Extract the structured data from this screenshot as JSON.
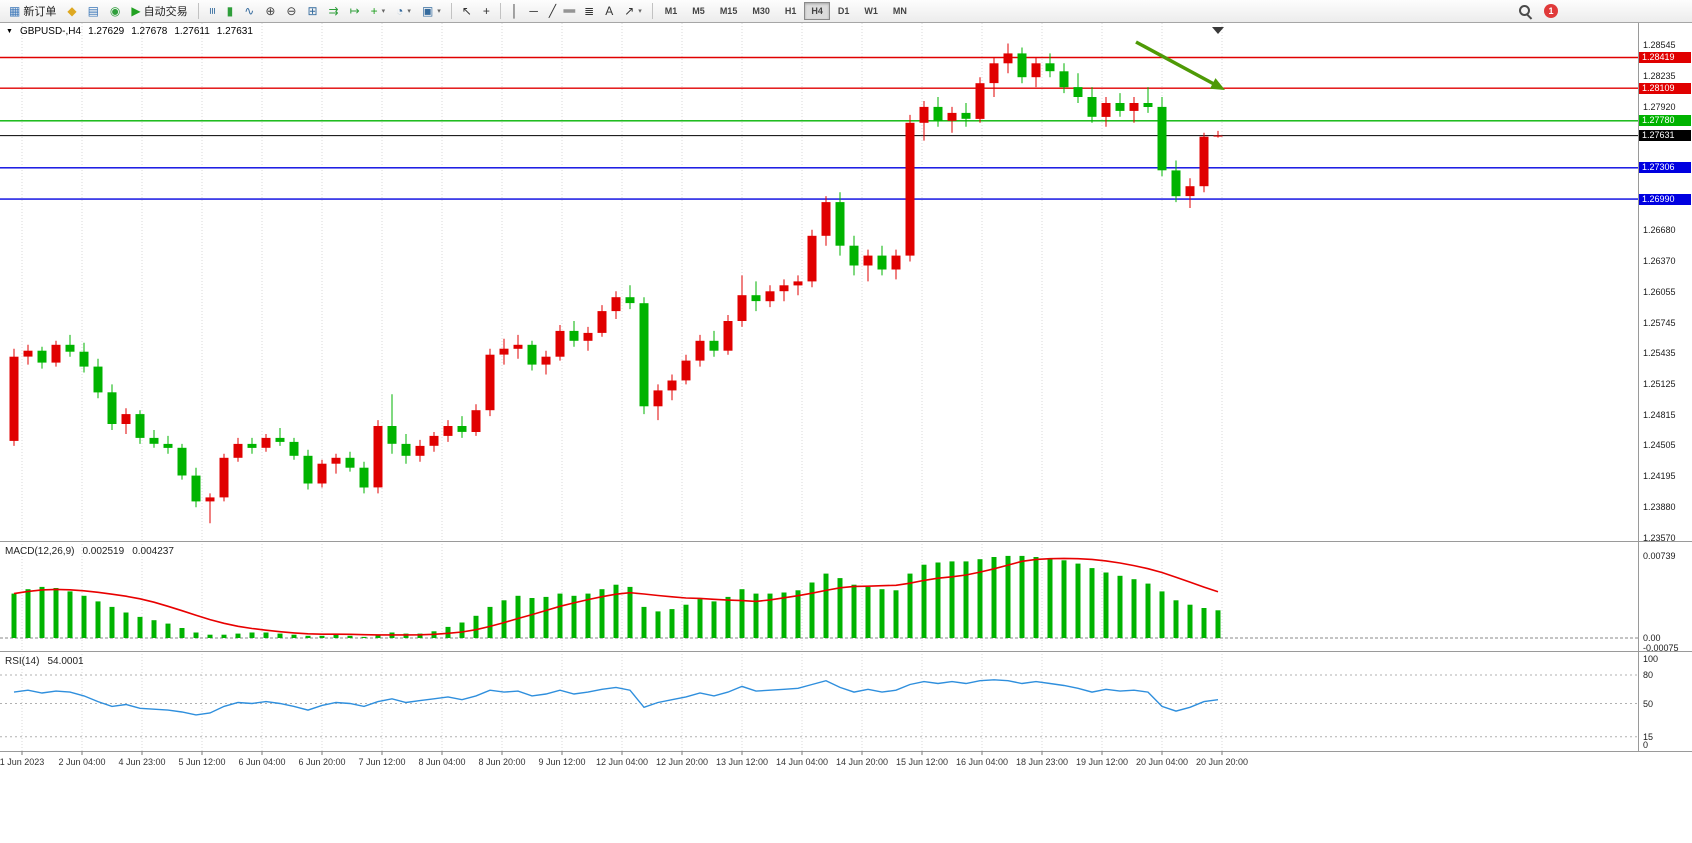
{
  "toolbar": {
    "groups": [
      {
        "name": "trade-toolbar",
        "items": [
          {
            "name": "new-order-button",
            "icon": "new-order-icon",
            "glyph": "▦",
            "color": "#3a76b8",
            "label": "新订单"
          },
          {
            "name": "chart-window-button",
            "icon": "chart-window-icon",
            "glyph": "◆",
            "color": "#dea821"
          },
          {
            "name": "market-watch-button",
            "icon": "market-watch-icon",
            "glyph": "▤",
            "color": "#3a76b8"
          },
          {
            "name": "data-window-button",
            "icon": "data-window-icon",
            "glyph": "◉",
            "color": "#2e9e3a"
          },
          {
            "name": "auto-trading-button",
            "icon": "autotrade-play-icon",
            "glyph": "▶",
            "color": "#21a121",
            "label": "自动交易"
          }
        ]
      },
      {
        "name": "chart-type-toolbar",
        "items": [
          {
            "name": "bar-chart-button",
            "icon": "ohlc-bars-icon",
            "glyph": "≡",
            "rot": true,
            "color": "#356b9e"
          },
          {
            "name": "candlestick-button",
            "icon": "candlestick-icon",
            "glyph": "▮",
            "color": "#2e9e3a"
          },
          {
            "name": "line-chart-button",
            "icon": "line-chart-icon",
            "glyph": "∿",
            "color": "#356b9e"
          },
          {
            "name": "zoom-in-button",
            "icon": "zoom-in-icon",
            "glyph": "⊕",
            "color": "#444444"
          },
          {
            "name": "zoom-out-button",
            "icon": "zoom-out-icon",
            "glyph": "⊖",
            "color": "#444444"
          },
          {
            "name": "tile-windows-button",
            "icon": "tile-windows-icon",
            "glyph": "⊞",
            "color": "#356b9e"
          },
          {
            "name": "auto-scroll-button",
            "icon": "auto-scroll-icon",
            "glyph": "⇉",
            "color": "#2e9e3a"
          },
          {
            "name": "chart-shift-button",
            "icon": "chart-shift-icon",
            "glyph": "↦",
            "color": "#2e9e3a"
          },
          {
            "name": "indicators-button",
            "icon": "indicator-plus-icon",
            "glyph": "+",
            "color": "#1e9e1e",
            "dropdown": true
          },
          {
            "name": "periods-button",
            "icon": "clock-icon",
            "glyph": "◔",
            "color": "#356b9e",
            "dropdown": true
          },
          {
            "name": "templates-button",
            "icon": "template-icon",
            "glyph": "▣",
            "color": "#356b9e",
            "dropdown": true
          }
        ]
      },
      {
        "name": "cursor-toolbar",
        "items": [
          {
            "name": "cursor-button",
            "icon": "cursor-icon",
            "glyph": "↖",
            "color": "#333333"
          },
          {
            "name": "crosshair-button",
            "icon": "crosshair-icon",
            "glyph": "+",
            "color": "#333333"
          }
        ]
      },
      {
        "name": "line-studies-toolbar",
        "items": [
          {
            "name": "vertical-line-button",
            "icon": "vertical-line-icon",
            "glyph": "│",
            "color": "#333333"
          },
          {
            "name": "horizontal-line-button",
            "icon": "horizontal-line-icon",
            "glyph": "─",
            "color": "#333333"
          },
          {
            "name": "trendline-button",
            "icon": "trendline-icon",
            "glyph": "╱",
            "color": "#333333"
          },
          {
            "name": "channel-button",
            "icon": "channel-icon",
            "glyph": "∥",
            "rot": true,
            "color": "#333333"
          },
          {
            "name": "fibonacci-button",
            "icon": "fibonacci-icon",
            "glyph": "≣",
            "color": "#333333"
          },
          {
            "name": "text-button",
            "icon": "text-icon",
            "glyph": "A",
            "color": "#333333"
          },
          {
            "name": "arrows-button",
            "icon": "arrows-icon",
            "glyph": "↗",
            "color": "#333333",
            "dropdown": true
          }
        ]
      }
    ],
    "timeframes": {
      "items": [
        "M1",
        "M5",
        "M15",
        "M30",
        "H1",
        "H4",
        "D1",
        "W1",
        "MN"
      ],
      "active": "H4"
    },
    "notification_badge": "1"
  },
  "chart_header": {
    "collapse_marker": "▼",
    "symbol": "GBPUSD-,H4",
    "open": "1.27629",
    "high": "1.27678",
    "low": "1.27611",
    "close": "1.27631"
  },
  "price_scale": {
    "plain_labels": [
      "1.28545",
      "1.28235",
      "1.27920",
      "1.26680",
      "1.26370",
      "1.26055",
      "1.25745",
      "1.25435",
      "1.25125",
      "1.24815",
      "1.24505",
      "1.24195",
      "1.23880",
      "1.23570"
    ],
    "tags": [
      {
        "value": "1.28419",
        "color": "#e00000"
      },
      {
        "value": "1.28109",
        "color": "#e00000"
      },
      {
        "value": "1.27780",
        "color": "#00b300"
      },
      {
        "value": "1.27631",
        "color": "#000000"
      },
      {
        "value": "1.27306",
        "color": "#0000e0"
      },
      {
        "value": "1.26990",
        "color": "#0000e0"
      }
    ]
  },
  "indicators": {
    "macd": {
      "label": "MACD(12,26,9)",
      "value_main": "0.002519",
      "value_signal": "0.004237",
      "scale_labels": [
        "0.00739",
        "0.00",
        "-0.00075"
      ]
    },
    "rsi": {
      "label": "RSI(14)",
      "value": "54.0001",
      "scale_labels": [
        "100",
        "80",
        "50",
        "15",
        "0"
      ]
    }
  },
  "time_axis": [
    "1 Jun 2023",
    "2 Jun 04:00",
    "4 Jun 23:00",
    "5 Jun 12:00",
    "6 Jun 04:00",
    "6 Jun 20:00",
    "7 Jun 12:00",
    "8 Jun 04:00",
    "8 Jun 20:00",
    "9 Jun 12:00",
    "12 Jun 04:00",
    "12 Jun 20:00",
    "13 Jun 12:00",
    "14 Jun 04:00",
    "14 Jun 20:00",
    "15 Jun 12:00",
    "16 Jun 04:00",
    "18 Jun 23:00",
    "19 Jun 12:00",
    "20 Jun 04:00",
    "20 Jun 20:00"
  ],
  "chart_data": [
    {
      "type": "candlestick",
      "title": "GBPUSD- H4",
      "up_color": "#e00000",
      "down_color": "#00b300",
      "y_range": [
        1.2354,
        1.2877
      ],
      "x_labels": [
        "1 Jun 2023",
        "2 Jun 04:00",
        "4 Jun 23:00",
        "5 Jun 12:00",
        "6 Jun 04:00",
        "6 Jun 20:00",
        "7 Jun 12:00",
        "8 Jun 04:00",
        "8 Jun 20:00",
        "9 Jun 12:00",
        "12 Jun 04:00",
        "12 Jun 20:00",
        "13 Jun 12:00",
        "14 Jun 04:00",
        "14 Jun 20:00",
        "15 Jun 12:00",
        "16 Jun 04:00",
        "18 Jun 23:00",
        "19 Jun 12:00",
        "20 Jun 04:00",
        "20 Jun 20:00"
      ],
      "levels": [
        {
          "price": 1.28419,
          "color": "#e00000"
        },
        {
          "price": 1.28109,
          "color": "#e00000"
        },
        {
          "price": 1.2778,
          "color": "#00b300"
        },
        {
          "price": 1.27631,
          "color": "#000000"
        },
        {
          "price": 1.27306,
          "color": "#0000e0"
        },
        {
          "price": 1.2699,
          "color": "#0000e0"
        }
      ],
      "current_price": 1.27631,
      "annotations": [
        {
          "type": "arrow",
          "color": "#4e9a06",
          "note": "green down-sloping arrow over recent highs"
        }
      ],
      "candles": [
        [
          1.2455,
          1.2548,
          1.245,
          1.254
        ],
        [
          1.254,
          1.2552,
          1.2532,
          1.2546
        ],
        [
          1.2546,
          1.255,
          1.2528,
          1.2534
        ],
        [
          1.2534,
          1.2556,
          1.253,
          1.2552
        ],
        [
          1.2552,
          1.2562,
          1.254,
          1.2545
        ],
        [
          1.2545,
          1.2554,
          1.2524,
          1.253
        ],
        [
          1.253,
          1.2538,
          1.2498,
          1.2504
        ],
        [
          1.2504,
          1.2512,
          1.2466,
          1.2472
        ],
        [
          1.2472,
          1.2488,
          1.2462,
          1.2482
        ],
        [
          1.2482,
          1.2486,
          1.2452,
          1.2458
        ],
        [
          1.2458,
          1.2466,
          1.2448,
          1.2452
        ],
        [
          1.2452,
          1.246,
          1.2442,
          1.2448
        ],
        [
          1.2448,
          1.2452,
          1.2416,
          1.242
        ],
        [
          1.242,
          1.2428,
          1.2388,
          1.2394
        ],
        [
          1.2394,
          1.2402,
          1.2372,
          1.2398
        ],
        [
          1.2398,
          1.2442,
          1.2394,
          1.2438
        ],
        [
          1.2438,
          1.2458,
          1.2434,
          1.2452
        ],
        [
          1.2452,
          1.2458,
          1.2442,
          1.2448
        ],
        [
          1.2448,
          1.2462,
          1.2444,
          1.2458
        ],
        [
          1.2458,
          1.2468,
          1.245,
          1.2454
        ],
        [
          1.2454,
          1.2458,
          1.2436,
          1.244
        ],
        [
          1.244,
          1.2446,
          1.2406,
          1.2412
        ],
        [
          1.2412,
          1.2436,
          1.2408,
          1.2432
        ],
        [
          1.2432,
          1.2442,
          1.2422,
          1.2438
        ],
        [
          1.2438,
          1.2444,
          1.2424,
          1.2428
        ],
        [
          1.2428,
          1.2434,
          1.2402,
          1.2408
        ],
        [
          1.2408,
          1.2476,
          1.2402,
          1.247
        ],
        [
          1.247,
          1.2502,
          1.2442,
          1.2452
        ],
        [
          1.2452,
          1.2462,
          1.2432,
          1.244
        ],
        [
          1.244,
          1.2456,
          1.2434,
          1.245
        ],
        [
          1.245,
          1.2464,
          1.2444,
          1.246
        ],
        [
          1.246,
          1.2476,
          1.2454,
          1.247
        ],
        [
          1.247,
          1.248,
          1.2458,
          1.2464
        ],
        [
          1.2464,
          1.2492,
          1.246,
          1.2486
        ],
        [
          1.2486,
          1.2548,
          1.248,
          1.2542
        ],
        [
          1.2542,
          1.2558,
          1.2532,
          1.2548
        ],
        [
          1.2548,
          1.2562,
          1.2538,
          1.2552
        ],
        [
          1.2552,
          1.2556,
          1.2526,
          1.2532
        ],
        [
          1.2532,
          1.2546,
          1.2522,
          1.254
        ],
        [
          1.254,
          1.2572,
          1.2536,
          1.2566
        ],
        [
          1.2566,
          1.2576,
          1.255,
          1.2556
        ],
        [
          1.2556,
          1.257,
          1.2546,
          1.2564
        ],
        [
          1.2564,
          1.2592,
          1.256,
          1.2586
        ],
        [
          1.2586,
          1.2606,
          1.2578,
          1.26
        ],
        [
          1.26,
          1.2612,
          1.2588,
          1.2594
        ],
        [
          1.2594,
          1.26,
          1.2482,
          1.249
        ],
        [
          1.249,
          1.2512,
          1.2476,
          1.2506
        ],
        [
          1.2506,
          1.2522,
          1.2496,
          1.2516
        ],
        [
          1.2516,
          1.2542,
          1.2512,
          1.2536
        ],
        [
          1.2536,
          1.2562,
          1.253,
          1.2556
        ],
        [
          1.2556,
          1.2566,
          1.254,
          1.2546
        ],
        [
          1.2546,
          1.2582,
          1.2542,
          1.2576
        ],
        [
          1.2576,
          1.2622,
          1.257,
          1.2602
        ],
        [
          1.2602,
          1.2616,
          1.2586,
          1.2596
        ],
        [
          1.2596,
          1.2612,
          1.259,
          1.2606
        ],
        [
          1.2606,
          1.2618,
          1.2596,
          1.2612
        ],
        [
          1.2612,
          1.2622,
          1.2602,
          1.2616
        ],
        [
          1.2616,
          1.2668,
          1.261,
          1.2662
        ],
        [
          1.2662,
          1.2702,
          1.2652,
          1.2696
        ],
        [
          1.2696,
          1.2706,
          1.2642,
          1.2652
        ],
        [
          1.2652,
          1.2662,
          1.2622,
          1.2632
        ],
        [
          1.2632,
          1.2648,
          1.2616,
          1.2642
        ],
        [
          1.2642,
          1.2652,
          1.2622,
          1.2628
        ],
        [
          1.2628,
          1.2648,
          1.2618,
          1.2642
        ],
        [
          1.2642,
          1.2784,
          1.2636,
          1.2776
        ],
        [
          1.2776,
          1.2798,
          1.2758,
          1.2792
        ],
        [
          1.2792,
          1.2802,
          1.2772,
          1.2778
        ],
        [
          1.2778,
          1.2792,
          1.2766,
          1.2786
        ],
        [
          1.2786,
          1.2796,
          1.2772,
          1.278
        ],
        [
          1.278,
          1.2822,
          1.2776,
          1.2816
        ],
        [
          1.2816,
          1.2842,
          1.2802,
          1.2836
        ],
        [
          1.2836,
          1.2856,
          1.2826,
          1.2846
        ],
        [
          1.2846,
          1.2852,
          1.2816,
          1.2822
        ],
        [
          1.2822,
          1.2842,
          1.2812,
          1.2836
        ],
        [
          1.2836,
          1.2846,
          1.2822,
          1.2828
        ],
        [
          1.2828,
          1.2836,
          1.2806,
          1.2812
        ],
        [
          1.2812,
          1.2826,
          1.2796,
          1.2802
        ],
        [
          1.2802,
          1.2812,
          1.2776,
          1.2782
        ],
        [
          1.2782,
          1.2802,
          1.2772,
          1.2796
        ],
        [
          1.2796,
          1.2806,
          1.2782,
          1.2788
        ],
        [
          1.2788,
          1.2802,
          1.2776,
          1.2796
        ],
        [
          1.2796,
          1.2812,
          1.2786,
          1.2792
        ],
        [
          1.2792,
          1.2802,
          1.2722,
          1.2728
        ],
        [
          1.2728,
          1.2738,
          1.2696,
          1.2702
        ],
        [
          1.2702,
          1.272,
          1.269,
          1.2712
        ],
        [
          1.2712,
          1.2766,
          1.2706,
          1.2762
        ],
        [
          1.27629,
          1.27678,
          1.27611,
          1.27631
        ]
      ]
    },
    {
      "type": "bar",
      "name": "MACD(12,26,9)",
      "color": "#00b300",
      "signal_color": "#e80000",
      "current_main": 0.002519,
      "current_signal": 0.004237,
      "ylim": [
        -0.00075,
        0.00739
      ],
      "signal_note": "red line = SMA(9) of values",
      "values": [
        0.004,
        0.0044,
        0.0046,
        0.0045,
        0.0042,
        0.0038,
        0.0033,
        0.0028,
        0.0023,
        0.0019,
        0.0016,
        0.0013,
        0.0009,
        0.0005,
        0.0003,
        0.0003,
        0.0004,
        0.0005,
        0.0005,
        0.0004,
        0.0003,
        0.0002,
        0.0002,
        0.0003,
        0.0002,
        0.0001,
        0.0003,
        0.0005,
        0.0004,
        0.0004,
        0.0006,
        0.001,
        0.0014,
        0.002,
        0.0028,
        0.0034,
        0.0038,
        0.0036,
        0.0037,
        0.004,
        0.0038,
        0.004,
        0.0044,
        0.0048,
        0.0046,
        0.0028,
        0.0024,
        0.0026,
        0.003,
        0.0035,
        0.0033,
        0.0037,
        0.0044,
        0.004,
        0.004,
        0.0041,
        0.0043,
        0.005,
        0.0058,
        0.0054,
        0.0048,
        0.0046,
        0.0044,
        0.0043,
        0.0058,
        0.0066,
        0.0068,
        0.0069,
        0.0069,
        0.0071,
        0.0073,
        0.0074,
        0.0074,
        0.0073,
        0.0072,
        0.007,
        0.0067,
        0.0063,
        0.0059,
        0.0056,
        0.0053,
        0.0049,
        0.0042,
        0.0034,
        0.003,
        0.0027,
        0.0025
      ]
    },
    {
      "type": "line",
      "name": "RSI(14)",
      "color": "#2f8fdd",
      "current": 54.0001,
      "levels": [
        80,
        50,
        15
      ],
      "ylim": [
        0,
        100
      ],
      "values": [
        62,
        64,
        61,
        63,
        62,
        58,
        52,
        47,
        49,
        45,
        44,
        43,
        41,
        38,
        40,
        47,
        51,
        50,
        52,
        50,
        47,
        43,
        48,
        51,
        50,
        47,
        52,
        55,
        51,
        53,
        55,
        57,
        54,
        58,
        64,
        62,
        63,
        58,
        60,
        64,
        60,
        62,
        65,
        67,
        64,
        46,
        51,
        54,
        57,
        61,
        58,
        62,
        68,
        63,
        64,
        65,
        66,
        70,
        74,
        67,
        62,
        65,
        62,
        64,
        70,
        73,
        71,
        73,
        71,
        74,
        75,
        74,
        71,
        73,
        71,
        69,
        66,
        62,
        65,
        63,
        64,
        62,
        47,
        42,
        46,
        52,
        54
      ]
    }
  ]
}
